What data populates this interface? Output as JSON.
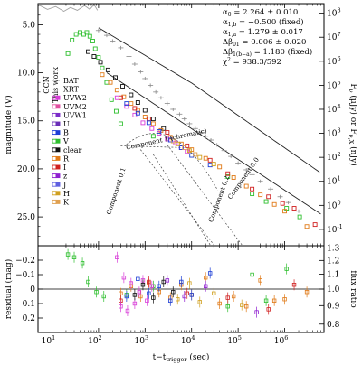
{
  "chart_data": {
    "type": "scatter",
    "x_scale": "log",
    "grid": false,
    "x_axis": {
      "title": "t−t",
      "title_subscript": "trigger",
      "title_suffix": " (sec)",
      "range": [
        5,
        7000000
      ],
      "ticks": [
        {
          "value": 10,
          "base": "10",
          "exp": "1"
        },
        {
          "value": 100,
          "base": "10",
          "exp": "2"
        },
        {
          "value": 1000,
          "base": "10",
          "exp": "3"
        },
        {
          "value": 10000,
          "base": "10",
          "exp": "4"
        },
        {
          "value": 100000,
          "base": "10",
          "exp": "5"
        },
        {
          "value": 1000000,
          "base": "10",
          "exp": "6"
        }
      ]
    },
    "top_panel": {
      "y_label": "magnitude (V)",
      "y_range": [
        28.0,
        2.8
      ],
      "y_inverted": true,
      "y_ticks": [
        "5.0",
        "10.0",
        "15.0",
        "20.0",
        "25.0"
      ],
      "y_tick_values": [
        5,
        10,
        15,
        20,
        25
      ],
      "right_label": "F",
      "right_label_sub": "ν",
      "right_label_mid": " (μJy)  or  F",
      "right_label_sub2": "ν,X",
      "right_label_end": " (nJy)",
      "right_ticks": [
        {
          "base": "10",
          "exp": "8",
          "mag": 3.8
        },
        {
          "base": "10",
          "exp": "7",
          "mag": 6.3
        },
        {
          "base": "10",
          "exp": "6",
          "mag": 8.8
        },
        {
          "base": "10",
          "exp": "5",
          "mag": 11.3
        },
        {
          "base": "10",
          "exp": "4",
          "mag": 13.8
        },
        {
          "base": "10",
          "exp": "3",
          "mag": 16.3
        },
        {
          "base": "10",
          "exp": "2",
          "mag": 18.8
        },
        {
          "base": "10",
          "exp": "1",
          "mag": 21.3
        },
        {
          "base": "10",
          "exp": "0",
          "mag": 23.8
        },
        {
          "base": "10",
          "exp": "-1",
          "mag": 26.3
        }
      ],
      "stats": [
        {
          "sym": "α",
          "sub": "0",
          "text": " = 2.264 ± 0.010"
        },
        {
          "sym": "α",
          "sub": "1,b",
          "text": " = −0.500 (fixed)"
        },
        {
          "sym": "α",
          "sub": "1,a",
          "text": " = 1.279 ± 0.017"
        },
        {
          "sym": "Δβ",
          "sub": "01",
          "text": " = 0.006 ± 0.020"
        },
        {
          "sym": "Δβ",
          "sub": "1(b−a)",
          "text": " = 1.180 (fixed)"
        },
        {
          "sym": "χ",
          "sub": "",
          "sup": "2",
          "text": " = 938.3/592"
        }
      ],
      "legend_title_left": "GCN",
      "legend_title_right": "This work",
      "legend": [
        {
          "label": "BAT",
          "color": "#9a9a9a"
        },
        {
          "label": "XRT",
          "color": "#9a9a9a"
        },
        {
          "label": "UVW2",
          "color": "#d83cd8"
        },
        {
          "label": "UVM2",
          "color": "#e04fa0"
        },
        {
          "label": "UVW1",
          "color": "#7c2cc9"
        },
        {
          "label": "U",
          "color": "#6a2fb8"
        },
        {
          "label": "B",
          "color": "#1d3fd6"
        },
        {
          "label": "V",
          "color": "#2fbf2f"
        },
        {
          "label": "clear",
          "color": "#111111"
        },
        {
          "label": "R",
          "color": "#e07a18"
        },
        {
          "label": "I",
          "color": "#d02020"
        },
        {
          "label": "z",
          "color": "#9020d0"
        },
        {
          "label": "J",
          "color": "#6060e0"
        },
        {
          "label": "H",
          "color": "#d0a020"
        },
        {
          "label": "K",
          "color": "#e0a050"
        }
      ],
      "annotations": [
        {
          "text": "Component 1 (chromatic)"
        },
        {
          "text": "Component 0,1"
        },
        {
          "text": "Component 0,2"
        },
        {
          "text": "Component 0,0"
        }
      ],
      "series": [
        {
          "name": "BAT",
          "color": "#a0a0a0",
          "style": "line",
          "x": [
            5,
            8,
            12,
            18,
            25,
            35,
            50,
            65,
            80,
            90,
            95
          ],
          "y": [
            2.9,
            3.4,
            3.1,
            3.6,
            3.2,
            3.5,
            3.0,
            3.4,
            2.9,
            3.3,
            3.5
          ]
        },
        {
          "name": "XRT",
          "color": "#8a8a8a",
          "style": "errorbar",
          "x": [
            100,
            150,
            200,
            300,
            450,
            600,
            800,
            1000,
            1300,
            1700,
            2200,
            3000,
            4000,
            5500,
            7000,
            9000,
            12000,
            16000,
            20000,
            26000,
            35000,
            50000,
            70000,
            100000,
            150000,
            200000,
            300000,
            500000,
            800000,
            1200000,
            2000000
          ],
          "y": [
            5.6,
            6.1,
            6.7,
            7.4,
            8.3,
            9.1,
            9.9,
            10.6,
            11.3,
            12.0,
            12.6,
            13.2,
            13.8,
            14.3,
            14.8,
            15.3,
            15.8,
            16.2,
            16.6,
            17.0,
            17.5,
            18.1,
            18.7,
            19.4,
            20.1,
            20.6,
            21.3,
            22.1,
            22.9,
            23.5,
            24.4
          ]
        },
        {
          "name": "V",
          "color": "#2fbf2f",
          "style": "square",
          "x": [
            22,
            27,
            33,
            40,
            48,
            56,
            65,
            75,
            85,
            100,
            120,
            150,
            190,
            240,
            300,
            1500,
            60000,
            200000,
            400000,
            1100000,
            2100000
          ],
          "y": [
            8.0,
            6.6,
            6.0,
            5.8,
            6.0,
            5.8,
            6.2,
            6.7,
            7.5,
            8.4,
            9.5,
            11.0,
            12.8,
            14.0,
            15.3,
            16.6,
            20.8,
            22.6,
            23.4,
            24.1,
            25.0
          ]
        },
        {
          "name": "clear",
          "color": "#111111",
          "style": "square",
          "x": [
            60,
            80,
            110,
            160,
            230,
            330,
            500,
            700,
            1000,
            1500,
            2500
          ],
          "y": [
            7.8,
            8.3,
            8.9,
            9.7,
            10.5,
            11.4,
            12.3,
            13.1,
            13.9,
            14.8,
            15.8
          ]
        },
        {
          "name": "R",
          "color": "#e07a18",
          "style": "square",
          "x": [
            120,
            180,
            250,
            350,
            500,
            700,
            1000,
            1500,
            2200,
            3500,
            6000,
            10000,
            20000,
            40000,
            80000,
            150000,
            300000,
            600000,
            1000000,
            3000000
          ],
          "y": [
            10.2,
            11.0,
            11.8,
            12.5,
            13.2,
            13.9,
            14.6,
            15.3,
            16.0,
            16.7,
            17.4,
            18.0,
            18.9,
            19.8,
            20.9,
            21.8,
            22.7,
            23.7,
            24.4,
            26.0
          ]
        },
        {
          "name": "I",
          "color": "#d02020",
          "style": "square",
          "x": [
            300,
            600,
            1200,
            3000,
            8000,
            25000,
            60000,
            200000,
            450000,
            900000,
            1600000,
            4500000
          ],
          "y": [
            12.6,
            13.7,
            14.8,
            16.2,
            17.6,
            19.1,
            20.5,
            22.1,
            22.9,
            23.6,
            24.1,
            25.8
          ]
        },
        {
          "name": "UVW2",
          "color": "#d83cd8",
          "style": "square",
          "x": [
            250,
            400,
            600,
            900,
            1400,
            2000,
            3000,
            4500,
            6000,
            8000
          ],
          "y": [
            12.6,
            13.5,
            14.4,
            15.2,
            15.8,
            16.3,
            16.9,
            17.3,
            17.8,
            18.2
          ]
        },
        {
          "name": "B",
          "color": "#1d3fd6",
          "style": "square",
          "x": [
            400,
            700,
            1200,
            2000,
            3500,
            6000,
            10000,
            25000
          ],
          "y": [
            13.2,
            14.2,
            15.2,
            16.1,
            17.0,
            17.8,
            18.6,
            19.6
          ]
        },
        {
          "name": "H",
          "color": "#d0a020",
          "style": "square",
          "x": [
            5000,
            9000,
            15000,
            30000
          ],
          "y": [
            17.4,
            18.1,
            18.8,
            19.5
          ]
        },
        {
          "name": "K",
          "color": "#e0a050",
          "style": "square",
          "x": [
            4000,
            7000,
            12000
          ],
          "y": [
            17.1,
            17.8,
            18.5
          ]
        }
      ]
    },
    "bottom_panel": {
      "y_label": "residual (mag)",
      "y_range": [
        0.3,
        -0.3
      ],
      "y_ticks": [
        "−0.2",
        "−0.1",
        "0",
        "0.1",
        "0.2"
      ],
      "y_tick_values": [
        -0.2,
        -0.1,
        0,
        0.1,
        0.2
      ],
      "right_label": "flux ratio",
      "right_ticks": [
        "1.3",
        "1.2",
        "1.1",
        "1.0",
        "0.9",
        "0.8"
      ],
      "right_tick_values": [
        1.3,
        1.2,
        1.1,
        1.0,
        0.9,
        0.8
      ],
      "series": [
        {
          "name": "V",
          "color": "#2fbf2f",
          "x": [
            22,
            30,
            45,
            60,
            90,
            130,
            400,
            1500,
            60000,
            200000,
            400000,
            1100000
          ],
          "y": [
            -0.24,
            -0.22,
            -0.18,
            -0.05,
            0.02,
            0.05,
            0.04,
            -0.02,
            0.12,
            -0.1,
            0.08,
            -0.14
          ]
        },
        {
          "name": "R",
          "color": "#e07a18",
          "x": [
            300,
            500,
            800,
            1200,
            2000,
            3500,
            6000,
            10000,
            20000,
            40000,
            80000,
            150000,
            300000,
            600000,
            1000000,
            3000000
          ],
          "y": [
            0.03,
            -0.02,
            0.05,
            -0.04,
            0.02,
            0.06,
            -0.03,
            0.04,
            -0.08,
            0.1,
            0.05,
            0.12,
            -0.06,
            0.08,
            0.07,
            0.02
          ]
        },
        {
          "name": "I",
          "color": "#d02020",
          "x": [
            300,
            1200,
            8000,
            60000,
            450000,
            1600000
          ],
          "y": [
            0.08,
            -0.05,
            0.03,
            0.06,
            0.14,
            -0.03
          ]
        },
        {
          "name": "UVW2",
          "color": "#d83cd8",
          "x": [
            250,
            300,
            350,
            420,
            500,
            600,
            750,
            900,
            1100,
            1400
          ],
          "y": [
            -0.22,
            0.12,
            -0.08,
            0.15,
            -0.04,
            0.1,
            0.02,
            -0.06,
            0.08,
            -0.02
          ]
        },
        {
          "name": "B",
          "color": "#1d3fd6",
          "x": [
            400,
            700,
            1200,
            2000,
            3500,
            6000,
            10000,
            25000
          ],
          "y": [
            0.05,
            -0.07,
            0.03,
            -0.02,
            0.08,
            -0.05,
            0.04,
            -0.11
          ]
        },
        {
          "name": "clear",
          "color": "#111111",
          "x": [
            600,
            900,
            1500,
            2500,
            4000
          ],
          "y": [
            0.04,
            -0.03,
            0.06,
            -0.05,
            0.02
          ]
        },
        {
          "name": "H",
          "color": "#d0a020",
          "x": [
            5000,
            9000,
            15000,
            30000,
            120000
          ],
          "y": [
            0.07,
            -0.04,
            0.09,
            0.03,
            0.11
          ]
        },
        {
          "name": "z",
          "color": "#9020d0",
          "x": [
            3000,
            7000,
            20000,
            250000
          ],
          "y": [
            -0.06,
            0.05,
            -0.02,
            0.16
          ]
        }
      ]
    }
  }
}
